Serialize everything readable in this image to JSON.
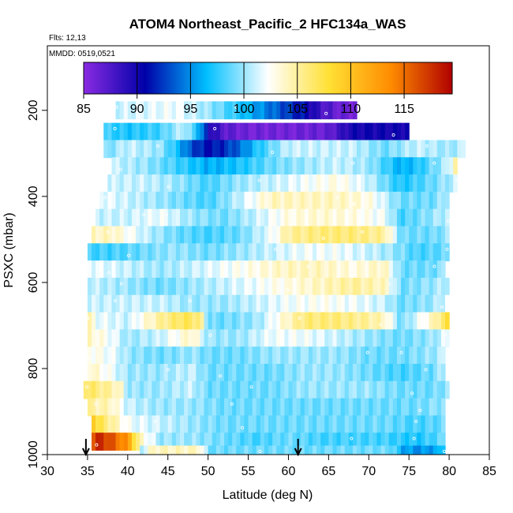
{
  "chart_data": {
    "type": "heatmap",
    "title": "ATOM4 Northeast_Pacific_2 HFC134a_WAS",
    "flights_label": "Flts: 12,13",
    "dates_label": "MMDD: 0519,0521",
    "xlabel": "Latitude (deg N)",
    "ylabel": "PSXC (mbar)",
    "xlim": [
      30,
      85
    ],
    "ylim": [
      1000,
      50
    ],
    "x_ticks": [
      "30",
      "35",
      "40",
      "45",
      "50",
      "55",
      "60",
      "65",
      "70",
      "75",
      "80",
      "85"
    ],
    "y_ticks": [
      "200",
      "400",
      "600",
      "800",
      "1000"
    ],
    "colorbar": {
      "min": 85,
      "max": 119.5,
      "ticks": [
        "85",
        "90",
        "95",
        "100",
        "105",
        "110",
        "115"
      ],
      "colors": [
        "#8a2be2",
        "#0000a8",
        "#00bfff",
        "#ffffff",
        "#ffe033",
        "#ff8c00",
        "#b00000"
      ]
    },
    "takeoff_markers_lat": [
      34.8,
      61.2
    ],
    "rows": [
      {
        "p": 200,
        "lat0": 38.5,
        "lat1": 68.5,
        "stops": [
          [
            38.5,
            101
          ],
          [
            42,
            101.5
          ],
          [
            46,
            102
          ],
          [
            50,
            100
          ],
          [
            54,
            97
          ],
          [
            58,
            94
          ],
          [
            62,
            91
          ],
          [
            64,
            88
          ],
          [
            66,
            86.5
          ],
          [
            68.5,
            86
          ]
        ]
      },
      {
        "p": 250,
        "lat0": 37,
        "lat1": 75,
        "stops": [
          [
            37,
            98
          ],
          [
            40,
            97
          ],
          [
            44,
            98
          ],
          [
            47,
            101
          ],
          [
            49,
            96
          ],
          [
            50,
            90
          ],
          [
            52,
            87
          ],
          [
            55,
            86
          ],
          [
            60,
            86
          ],
          [
            65,
            86.5
          ],
          [
            68,
            90
          ],
          [
            70,
            90
          ],
          [
            72,
            90
          ],
          [
            75,
            90
          ]
        ]
      },
      {
        "p": 290,
        "lat0": 37,
        "lat1": 82,
        "stops": [
          [
            37,
            99
          ],
          [
            40,
            101
          ],
          [
            44,
            100
          ],
          [
            46,
            97
          ],
          [
            48,
            93
          ],
          [
            50,
            91
          ],
          [
            52,
            92
          ],
          [
            54,
            94
          ],
          [
            56,
            97
          ],
          [
            58,
            99
          ],
          [
            60,
            101
          ],
          [
            64,
            101
          ],
          [
            68,
            101
          ],
          [
            72,
            99
          ],
          [
            76,
            101
          ],
          [
            80,
            100
          ],
          [
            82,
            101
          ]
        ]
      },
      {
        "p": 330,
        "lat0": 38,
        "lat1": 81,
        "stops": [
          [
            38,
            101
          ],
          [
            42,
            100
          ],
          [
            46,
            98
          ],
          [
            50,
            96
          ],
          [
            54,
            97
          ],
          [
            58,
            99
          ],
          [
            62,
            100
          ],
          [
            66,
            101
          ],
          [
            70,
            100
          ],
          [
            74,
            96
          ],
          [
            76,
            97
          ],
          [
            80,
            101
          ],
          [
            81,
            106
          ]
        ]
      },
      {
        "p": 370,
        "lat0": 37.5,
        "lat1": 81,
        "stops": [
          [
            37.5,
            101
          ],
          [
            42,
            101
          ],
          [
            46,
            100
          ],
          [
            50,
            98
          ],
          [
            54,
            100
          ],
          [
            58,
            101
          ],
          [
            62,
            102
          ],
          [
            66,
            103
          ],
          [
            70,
            101
          ],
          [
            74,
            97
          ],
          [
            78,
            99
          ],
          [
            81,
            101
          ]
        ]
      },
      {
        "p": 410,
        "lat0": 36.5,
        "lat1": 80,
        "stops": [
          [
            36.5,
            102
          ],
          [
            40,
            101
          ],
          [
            44,
            100
          ],
          [
            50,
            98
          ],
          [
            54,
            101
          ],
          [
            58,
            104
          ],
          [
            62,
            104
          ],
          [
            66,
            104
          ],
          [
            70,
            103
          ],
          [
            74,
            99
          ],
          [
            78,
            99
          ],
          [
            80,
            101
          ]
        ]
      },
      {
        "p": 450,
        "lat0": 36,
        "lat1": 80,
        "stops": [
          [
            36,
            101
          ],
          [
            40,
            101
          ],
          [
            44,
            102
          ],
          [
            48,
            100
          ],
          [
            52,
            99
          ],
          [
            56,
            101
          ],
          [
            60,
            103
          ],
          [
            64,
            103.5
          ],
          [
            68,
            103
          ],
          [
            72,
            102
          ],
          [
            74,
            98
          ],
          [
            76,
            99
          ],
          [
            80,
            101
          ]
        ]
      },
      {
        "p": 490,
        "lat0": 35.5,
        "lat1": 80,
        "stops": [
          [
            35.5,
            104
          ],
          [
            38,
            104
          ],
          [
            42,
            101
          ],
          [
            46,
            99
          ],
          [
            50,
            98
          ],
          [
            54,
            99
          ],
          [
            58,
            102
          ],
          [
            60,
            105
          ],
          [
            64,
            106
          ],
          [
            68,
            106
          ],
          [
            72,
            105
          ],
          [
            74,
            99
          ],
          [
            78,
            99
          ],
          [
            80,
            100
          ]
        ]
      },
      {
        "p": 530,
        "lat0": 35,
        "lat1": 80,
        "stops": [
          [
            35,
            98
          ],
          [
            38,
            98
          ],
          [
            42,
            99
          ],
          [
            46,
            100
          ],
          [
            50,
            99
          ],
          [
            54,
            100
          ],
          [
            58,
            101
          ],
          [
            62,
            102
          ],
          [
            66,
            102
          ],
          [
            70,
            101
          ],
          [
            73,
            100
          ],
          [
            76,
            98
          ],
          [
            80,
            99
          ]
        ]
      },
      {
        "p": 570,
        "lat0": 35,
        "lat1": 79.5,
        "stops": [
          [
            35,
            102
          ],
          [
            40,
            101
          ],
          [
            44,
            100
          ],
          [
            48,
            101
          ],
          [
            52,
            102
          ],
          [
            56,
            103
          ],
          [
            60,
            104
          ],
          [
            64,
            104
          ],
          [
            68,
            103
          ],
          [
            72,
            104
          ],
          [
            74,
            99
          ],
          [
            78,
            99
          ],
          [
            79.5,
            100
          ]
        ]
      },
      {
        "p": 610,
        "lat0": 35,
        "lat1": 80,
        "stops": [
          [
            35,
            101
          ],
          [
            40,
            100
          ],
          [
            44,
            99
          ],
          [
            48,
            100
          ],
          [
            52,
            101
          ],
          [
            56,
            102
          ],
          [
            60,
            103
          ],
          [
            64,
            104
          ],
          [
            68,
            105
          ],
          [
            72,
            104
          ],
          [
            74,
            99
          ],
          [
            78,
            100
          ],
          [
            80,
            101
          ]
        ]
      },
      {
        "p": 650,
        "lat0": 35,
        "lat1": 80,
        "stops": [
          [
            35,
            101
          ],
          [
            40,
            101
          ],
          [
            44,
            101
          ],
          [
            48,
            100
          ],
          [
            52,
            100
          ],
          [
            56,
            101
          ],
          [
            60,
            102
          ],
          [
            64,
            102.5
          ],
          [
            68,
            102
          ],
          [
            72,
            101
          ],
          [
            74,
            99
          ],
          [
            78,
            100
          ],
          [
            80,
            102
          ]
        ]
      },
      {
        "p": 690,
        "lat0": 35,
        "lat1": 80,
        "stops": [
          [
            35,
            105
          ],
          [
            36,
            102
          ],
          [
            40,
            101
          ],
          [
            44,
            105
          ],
          [
            47,
            107
          ],
          [
            49,
            106
          ],
          [
            50,
            99
          ],
          [
            52,
            99
          ],
          [
            56,
            100
          ],
          [
            60,
            104
          ],
          [
            62,
            106
          ],
          [
            66,
            106
          ],
          [
            70,
            105
          ],
          [
            72,
            104
          ],
          [
            74,
            99
          ],
          [
            78,
            104
          ],
          [
            80,
            108
          ]
        ]
      },
      {
        "p": 730,
        "lat0": 35,
        "lat1": 80,
        "stops": [
          [
            35,
            104
          ],
          [
            38,
            102
          ],
          [
            40,
            100
          ],
          [
            44,
            101
          ],
          [
            48,
            104
          ],
          [
            50,
            100
          ],
          [
            54,
            100
          ],
          [
            58,
            102
          ],
          [
            62,
            102
          ],
          [
            66,
            101
          ],
          [
            70,
            100
          ],
          [
            74,
            99
          ],
          [
            78,
            100
          ],
          [
            80,
            102
          ]
        ]
      },
      {
        "p": 770,
        "lat0": 35,
        "lat1": 79.5,
        "stops": [
          [
            35,
            103
          ],
          [
            38,
            102
          ],
          [
            40,
            100
          ],
          [
            44,
            99
          ],
          [
            48,
            100
          ],
          [
            50,
            99
          ],
          [
            54,
            99
          ],
          [
            58,
            100
          ],
          [
            62,
            100
          ],
          [
            66,
            100
          ],
          [
            70,
            99
          ],
          [
            74,
            99
          ],
          [
            78,
            100
          ],
          [
            79.5,
            101
          ]
        ]
      },
      {
        "p": 810,
        "lat0": 35,
        "lat1": 79.5,
        "stops": [
          [
            35,
            104
          ],
          [
            38,
            102
          ],
          [
            40,
            100
          ],
          [
            44,
            100
          ],
          [
            48,
            101
          ],
          [
            50,
            99
          ],
          [
            54,
            99
          ],
          [
            58,
            99
          ],
          [
            62,
            100
          ],
          [
            66,
            100
          ],
          [
            70,
            99
          ],
          [
            74,
            98
          ],
          [
            78,
            99
          ],
          [
            79.5,
            101
          ]
        ]
      },
      {
        "p": 850,
        "lat0": 34.5,
        "lat1": 80,
        "stops": [
          [
            34.5,
            107
          ],
          [
            36,
            106
          ],
          [
            39,
            104
          ],
          [
            40,
            100
          ],
          [
            44,
            100
          ],
          [
            48,
            101
          ],
          [
            50,
            99
          ],
          [
            54,
            99
          ],
          [
            58,
            99
          ],
          [
            62,
            100
          ],
          [
            66,
            100
          ],
          [
            70,
            100
          ],
          [
            74,
            99
          ],
          [
            78,
            99
          ],
          [
            80,
            100
          ]
        ]
      },
      {
        "p": 890,
        "lat0": 35,
        "lat1": 79.5,
        "stops": [
          [
            35,
            105
          ],
          [
            38,
            104
          ],
          [
            40,
            101
          ],
          [
            44,
            100
          ],
          [
            48,
            100
          ],
          [
            52,
            99
          ],
          [
            56,
            99
          ],
          [
            60,
            99
          ],
          [
            64,
            99
          ],
          [
            68,
            99
          ],
          [
            72,
            99
          ],
          [
            76,
            99
          ],
          [
            79.5,
            100
          ]
        ]
      },
      {
        "p": 930,
        "lat0": 35.5,
        "lat1": 79.5,
        "stops": [
          [
            35.5,
            112
          ],
          [
            36,
            108
          ],
          [
            38,
            105
          ],
          [
            40,
            102
          ],
          [
            44,
            101
          ],
          [
            48,
            100
          ],
          [
            52,
            99
          ],
          [
            56,
            99
          ],
          [
            60,
            99
          ],
          [
            64,
            99
          ],
          [
            68,
            99
          ],
          [
            72,
            99
          ],
          [
            76,
            98
          ],
          [
            79.5,
            99
          ]
        ]
      },
      {
        "p": 970,
        "lat0": 35.5,
        "lat1": 79.5,
        "stops": [
          [
            35.5,
            116
          ],
          [
            36.5,
            118
          ],
          [
            38,
            116
          ],
          [
            40,
            113
          ],
          [
            41.5,
            104
          ],
          [
            44,
            100
          ],
          [
            48,
            100
          ],
          [
            52,
            99
          ],
          [
            56,
            98
          ],
          [
            60,
            99
          ],
          [
            64,
            98
          ],
          [
            68,
            98
          ],
          [
            72,
            98
          ],
          [
            76,
            97
          ],
          [
            79.5,
            99
          ]
        ]
      },
      {
        "p": 1000,
        "lat0": 41.5,
        "lat1": 79.5,
        "stops": [
          [
            41.5,
            100
          ],
          [
            43,
            104
          ],
          [
            49,
            104
          ],
          [
            50,
            99
          ],
          [
            54,
            99
          ],
          [
            58,
            99
          ],
          [
            62,
            99
          ],
          [
            66,
            99
          ],
          [
            70,
            99
          ],
          [
            73,
            99
          ],
          [
            74,
            96
          ],
          [
            76,
            95
          ],
          [
            79,
            96
          ],
          [
            79.5,
            99
          ]
        ]
      }
    ]
  }
}
